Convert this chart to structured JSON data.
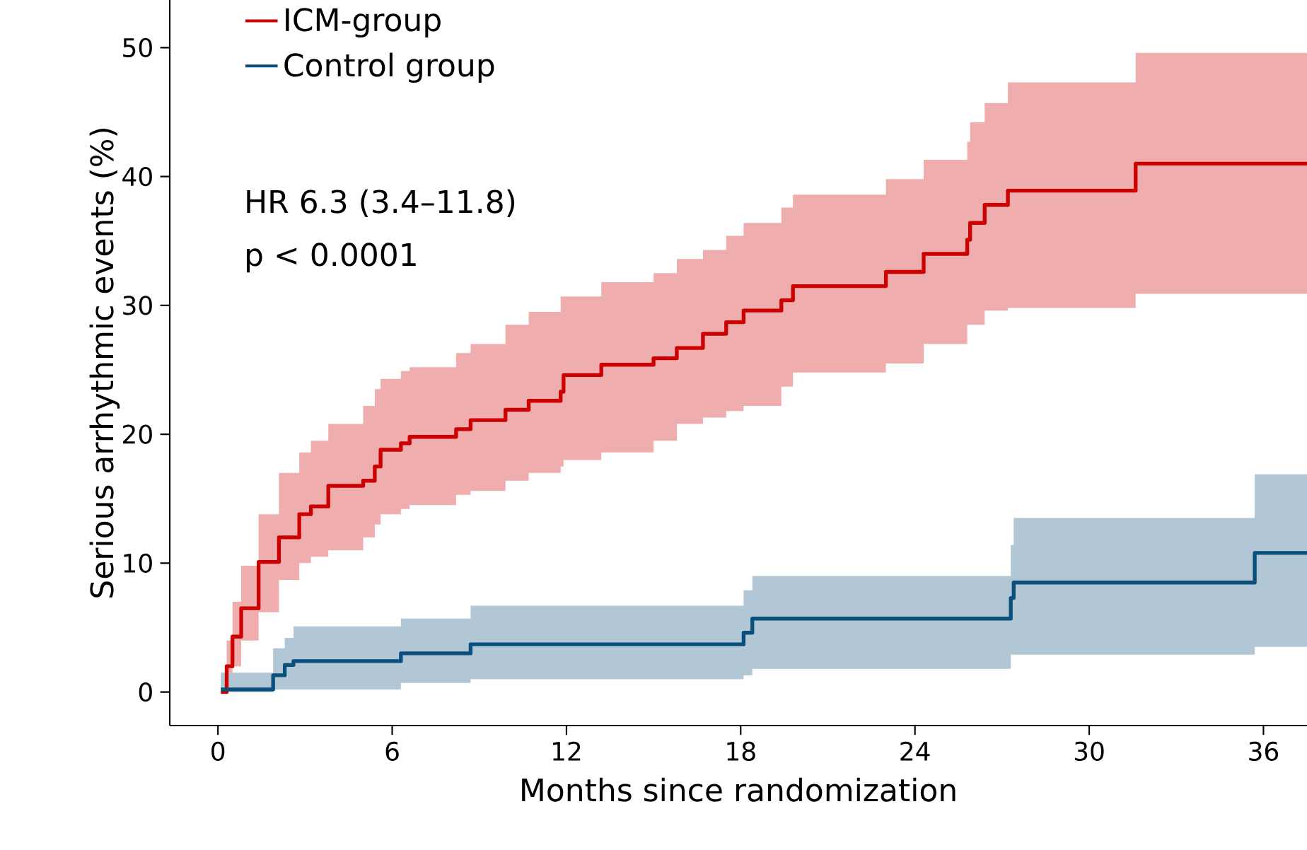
{
  "chart_data": {
    "type": "step",
    "xlabel": "Months since randomization",
    "ylabel": "Serious arrhythmic events (%)",
    "xlim": [
      -1.66,
      37.5
    ],
    "ylim": [
      -2.6,
      53.7
    ],
    "xticks": [
      0,
      6,
      12,
      18,
      24,
      30,
      36
    ],
    "yticks": [
      0,
      10,
      20,
      30,
      40,
      50
    ],
    "legend": "top left",
    "marker": "none",
    "line_style": "solid",
    "annotations": [
      "HR 6.3 (3.4–11.8)",
      "p < 0.0001"
    ],
    "series": [
      {
        "name": "ICM-group",
        "color": "#cc0000",
        "x": [
          0.1,
          0.3,
          0.5,
          0.8,
          1.4,
          2.1,
          2.8,
          3.2,
          3.8,
          5.0,
          5.4,
          5.6,
          6.3,
          6.6,
          8.2,
          8.7,
          9.9,
          10.7,
          11.8,
          11.9,
          13.2,
          15.0,
          15.8,
          16.7,
          17.5,
          18.1,
          19.4,
          19.8,
          23.0,
          24.3,
          25.8,
          25.9,
          26.4,
          27.2,
          31.6,
          37.5
        ],
        "values": [
          0,
          2.0,
          4.3,
          6.5,
          10.1,
          12.0,
          13.8,
          14.4,
          16.0,
          16.4,
          17.5,
          18.8,
          19.3,
          19.8,
          20.4,
          21.1,
          21.9,
          22.6,
          23.3,
          24.6,
          25.4,
          25.9,
          26.7,
          27.8,
          28.7,
          29.6,
          30.4,
          31.5,
          32.6,
          34.0,
          35.1,
          36.4,
          37.8,
          38.9,
          41.0,
          41.0
        ],
        "upper": [
          0,
          4,
          7,
          9.8,
          13.8,
          17,
          18.6,
          19.5,
          20.8,
          22.2,
          23.5,
          24.3,
          24.9,
          25.2,
          26.3,
          27,
          28.5,
          29.5,
          30.7,
          30.7,
          31.8,
          32.5,
          33.6,
          34.3,
          35.4,
          36.4,
          37.6,
          38.6,
          39.8,
          41.3,
          42.7,
          44.2,
          45.7,
          47.3,
          49.6,
          49.6
        ],
        "lower": [
          0,
          0.5,
          2,
          4.0,
          6.2,
          8.7,
          10.0,
          10.5,
          11.0,
          12.0,
          13.0,
          13.8,
          14.2,
          14.5,
          15.3,
          15.6,
          16.4,
          17.0,
          17.5,
          18.0,
          18.6,
          19.5,
          20.8,
          21.3,
          21.8,
          22.2,
          23.7,
          24.8,
          25.5,
          27.0,
          28.5,
          28.5,
          29.6,
          29.8,
          30.9,
          30.9
        ]
      },
      {
        "name": "Control group",
        "color": "#0b4f7c",
        "x": [
          0.1,
          1.9,
          2.3,
          2.6,
          6.3,
          8.7,
          18.1,
          18.4,
          27.3,
          27.4,
          35.7,
          37.5
        ],
        "values": [
          0.2,
          1.3,
          2.1,
          2.4,
          3.0,
          3.7,
          4.6,
          5.7,
          7.3,
          8.5,
          10.8,
          10.8
        ],
        "upper": [
          1.5,
          3.4,
          4.2,
          5.1,
          5.7,
          6.7,
          7.9,
          9.0,
          11.4,
          13.5,
          16.9,
          16.9
        ],
        "lower": [
          0,
          0.2,
          0.2,
          0.2,
          0.7,
          1.0,
          1.3,
          1.8,
          2.9,
          2.9,
          3.5,
          3.5
        ]
      }
    ]
  }
}
